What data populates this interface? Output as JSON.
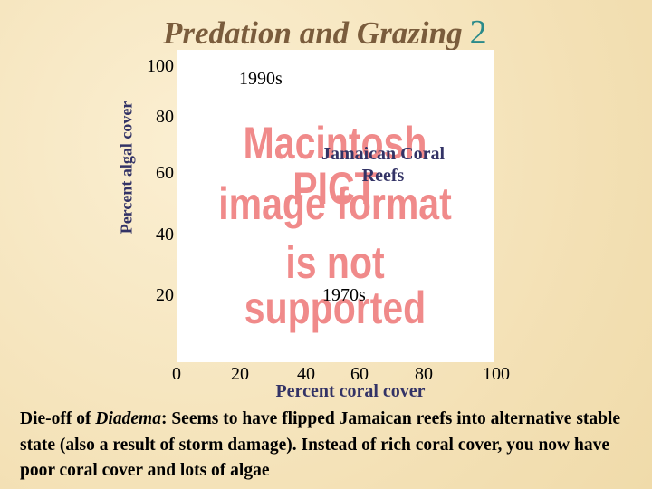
{
  "title": {
    "text": "Predation and Grazing",
    "number": "2"
  },
  "figure": {
    "y_axis_label": "Percent algal cover",
    "y_ticks": [
      "100",
      "80",
      "60",
      "40",
      "20",
      "0"
    ],
    "x_ticks": [
      "20",
      "40",
      "60",
      "80",
      "100"
    ],
    "x_axis_label": "Percent coral cover",
    "annotations": {
      "top": "1990s",
      "middle": "Jamaican Coral Reefs",
      "bottom": "1970s"
    },
    "placeholder": [
      "Macintosh PICT",
      "image format",
      "is not supported"
    ]
  },
  "caption": {
    "before": "Die-off of ",
    "italic": "Diadema",
    "after": ": Seems to have flipped Jamaican reefs into alternative stable state (also a result of storm damage). Instead of rich coral cover, you now have poor coral cover and lots of algae"
  }
}
